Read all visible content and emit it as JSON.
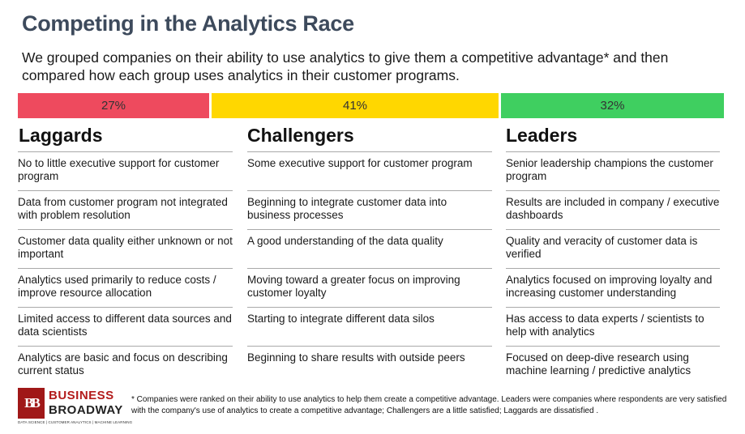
{
  "title": "Competing in the Analytics Race",
  "subtitle": "We grouped companies on their ability to use analytics to give them a competitive advantage* and then compared how each group uses analytics in their customer programs.",
  "colors": {
    "laggards": "#ee4a5e",
    "challengers": "#ffd700",
    "leaders": "#3fcf60",
    "title": "#3d4a5c",
    "brand": "#a01818"
  },
  "groups": [
    {
      "percent": "27%",
      "name": "Laggards",
      "items": [
        "No to little executive support for customer program",
        "Data from customer program not integrated with problem resolution",
        "Customer data quality either unknown or not important",
        "Analytics used primarily to reduce costs / improve resource allocation",
        "Limited access to different data sources and data scientists",
        "Analytics are basic and focus on describing current status"
      ]
    },
    {
      "percent": "41%",
      "name": "Challengers",
      "items": [
        "Some executive support for customer program",
        "Beginning to integrate customer data into business  processes",
        "A good understanding of the data quality",
        "Moving toward a greater focus on improving customer loyalty",
        "Starting to integrate different data silos",
        "Beginning to share results with outside peers"
      ]
    },
    {
      "percent": "32%",
      "name": "Leaders",
      "items": [
        "Senior leadership champions the customer program",
        "Results are included in company / executive dashboards",
        "Quality and veracity of customer data is verified",
        "Analytics focused on improving loyalty and increasing customer understanding",
        "Has access to data experts / scientists to help with analytics",
        "Focused on deep-dive research using machine learning / predictive analytics"
      ]
    }
  ],
  "logo": {
    "mark": "BB",
    "line1": "BUSINESS",
    "line2": "BROADWAY",
    "tagline": "DATA SCIENCE | CUSTOMER ANALYTICS | MACHINE LEARNING"
  },
  "footnote": "* Companies  were ranked on their ability to use analytics to help them create a competitive advantage. Leaders were companies where respondents are very satisfied with the company's use of analytics to create a competitive advantage; Challengers are a little satisfied; Laggards are dissatisfied ."
}
